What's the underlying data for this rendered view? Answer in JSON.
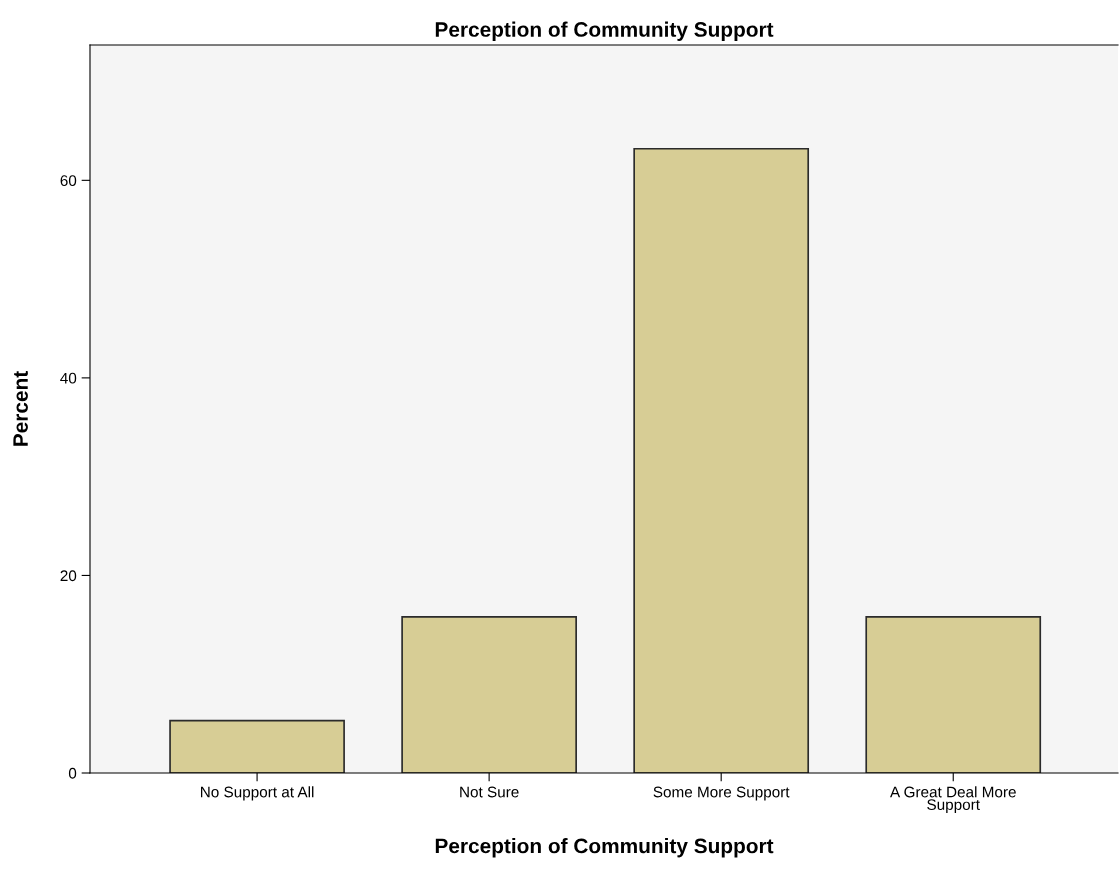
{
  "chart_data": {
    "type": "bar",
    "title": "Perception of Community Support",
    "xlabel": "Perception of Community Support",
    "ylabel": "Percent",
    "categories": [
      "No Support at All",
      "Not Sure",
      "Some More Support",
      "A Great Deal More\nSupport"
    ],
    "values": [
      5.3,
      15.8,
      63.2,
      15.8
    ],
    "color": "#d7cd95",
    "ylim": [
      0,
      73.7
    ],
    "yticks": [
      0,
      20,
      40,
      60
    ],
    "grid": false,
    "legend": false
  }
}
